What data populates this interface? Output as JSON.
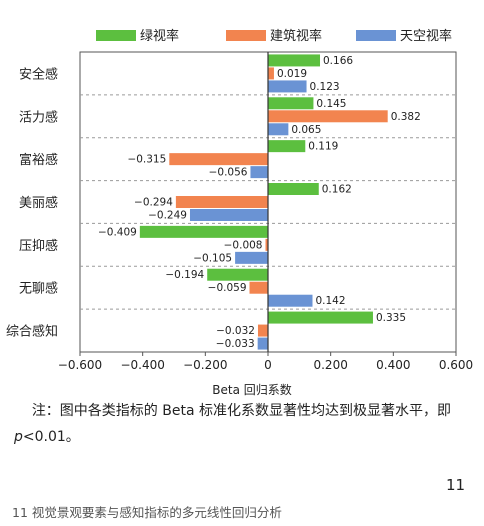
{
  "chart_data": {
    "type": "bar",
    "orientation": "horizontal",
    "categories": [
      "安全感",
      "活力感",
      "富裕感",
      "美丽感",
      "压抑感",
      "无聊感",
      "综合感知"
    ],
    "series": [
      {
        "name": "绿视率",
        "color": "#5cbf3f",
        "values": [
          0.166,
          0.145,
          0.119,
          0.162,
          -0.409,
          -0.194,
          0.335
        ]
      },
      {
        "name": "建筑视率",
        "color": "#f2844f",
        "values": [
          0.019,
          0.382,
          -0.315,
          -0.294,
          -0.008,
          -0.059,
          -0.032
        ]
      },
      {
        "name": "天空视率",
        "color": "#6a93d4",
        "values": [
          0.123,
          0.065,
          -0.056,
          -0.249,
          -0.105,
          0.142,
          -0.033
        ]
      }
    ],
    "data_labels": [
      [
        "0.166",
        "0.145",
        "0.119",
        "0.162",
        "−0.409",
        "−0.194",
        "0.335"
      ],
      [
        "0.019",
        "0.382",
        "−0.315",
        "−0.294",
        "−0.008",
        "−0.059",
        "−0.032"
      ],
      [
        "0.123",
        "0.065",
        "−0.056",
        "−0.249",
        "−0.105",
        "0.142",
        "−0.033"
      ]
    ],
    "xlim": [
      -0.6,
      0.6
    ],
    "xticks": [
      -0.6,
      -0.4,
      -0.2,
      0,
      0.2,
      0.4,
      0.6
    ],
    "xtick_labels": [
      "−0.600",
      "−0.400",
      "−0.200",
      "0",
      "0.200",
      "0.400",
      "0.600"
    ],
    "xlabel": "Beta 回归系数",
    "legend_position": "top",
    "grid": "dashed separators between categories"
  },
  "note": {
    "prefix": "注：图中各类指标的 Beta 标准化系数显著性均达到极显著水平，即 ",
    "var": "p",
    "suffix": "<0.01。"
  },
  "page_number": "11",
  "caption": "11 视觉景观要素与感知指标的多元线性回归分析"
}
